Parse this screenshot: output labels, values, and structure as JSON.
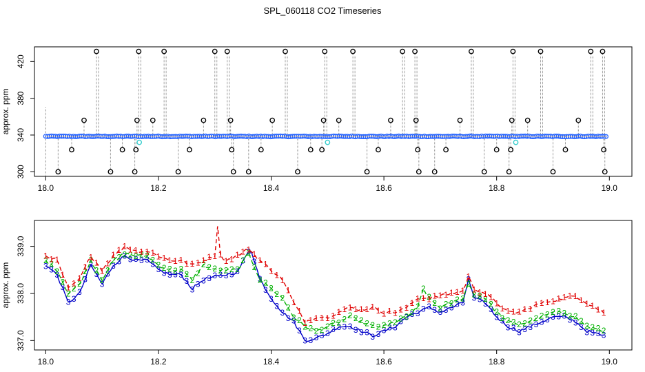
{
  "title": "SPL_060118  CO2 Timeseries",
  "colors": {
    "series1": "#e00000",
    "series2": "#00b000",
    "series3": "#0000c8",
    "raw": "#000000",
    "flagged": "#33cccc",
    "drop_line": "#888888",
    "frame": "#000000"
  },
  "chart_data": [
    {
      "type": "scatter",
      "ylabel": "approx. ppm",
      "xlabel": "",
      "xlim": [
        17.98,
        19.04
      ],
      "ylim": [
        295,
        436
      ],
      "xticks": [
        18.0,
        18.2,
        18.4,
        18.6,
        18.8,
        19.0
      ],
      "xtick_labels": [
        "18.0",
        "18.2",
        "18.4",
        "18.6",
        "18.8",
        "19.0"
      ],
      "yticks": [
        300,
        340,
        380,
        420
      ],
      "ytick_labels": [
        "300",
        "340",
        "380",
        "420"
      ],
      "baseline_ppm": 338.5,
      "baseline_x_range": [
        18.0,
        18.995
      ],
      "spikes": [
        {
          "x": 18.022,
          "y": 300
        },
        {
          "x": 18.046,
          "y": 324
        },
        {
          "x": 18.068,
          "y": 356
        },
        {
          "x": 18.09,
          "y": 431
        },
        {
          "x": 18.115,
          "y": 300
        },
        {
          "x": 18.136,
          "y": 324
        },
        {
          "x": 18.158,
          "y": 300
        },
        {
          "x": 18.16,
          "y": 324
        },
        {
          "x": 18.162,
          "y": 356
        },
        {
          "x": 18.165,
          "y": 431
        },
        {
          "x": 18.19,
          "y": 356
        },
        {
          "x": 18.21,
          "y": 431
        },
        {
          "x": 18.235,
          "y": 300
        },
        {
          "x": 18.255,
          "y": 324
        },
        {
          "x": 18.28,
          "y": 356
        },
        {
          "x": 18.3,
          "y": 431
        },
        {
          "x": 18.322,
          "y": 431
        },
        {
          "x": 18.328,
          "y": 356
        },
        {
          "x": 18.33,
          "y": 324
        },
        {
          "x": 18.333,
          "y": 300
        },
        {
          "x": 18.36,
          "y": 300
        },
        {
          "x": 18.382,
          "y": 324
        },
        {
          "x": 18.402,
          "y": 356
        },
        {
          "x": 18.425,
          "y": 431
        },
        {
          "x": 18.447,
          "y": 300
        },
        {
          "x": 18.47,
          "y": 324
        },
        {
          "x": 18.49,
          "y": 324
        },
        {
          "x": 18.493,
          "y": 356
        },
        {
          "x": 18.495,
          "y": 431
        },
        {
          "x": 18.52,
          "y": 356
        },
        {
          "x": 18.545,
          "y": 431
        },
        {
          "x": 18.57,
          "y": 300
        },
        {
          "x": 18.59,
          "y": 324
        },
        {
          "x": 18.612,
          "y": 356
        },
        {
          "x": 18.633,
          "y": 431
        },
        {
          "x": 18.655,
          "y": 431
        },
        {
          "x": 18.657,
          "y": 356
        },
        {
          "x": 18.66,
          "y": 324
        },
        {
          "x": 18.662,
          "y": 300
        },
        {
          "x": 18.69,
          "y": 300
        },
        {
          "x": 18.71,
          "y": 324
        },
        {
          "x": 18.735,
          "y": 356
        },
        {
          "x": 18.755,
          "y": 431
        },
        {
          "x": 18.778,
          "y": 300
        },
        {
          "x": 18.8,
          "y": 324
        },
        {
          "x": 18.822,
          "y": 300
        },
        {
          "x": 18.825,
          "y": 324
        },
        {
          "x": 18.827,
          "y": 356
        },
        {
          "x": 18.829,
          "y": 431
        },
        {
          "x": 18.855,
          "y": 356
        },
        {
          "x": 18.878,
          "y": 431
        },
        {
          "x": 18.9,
          "y": 300
        },
        {
          "x": 18.922,
          "y": 324
        },
        {
          "x": 18.945,
          "y": 356
        },
        {
          "x": 18.967,
          "y": 431
        },
        {
          "x": 18.988,
          "y": 431
        },
        {
          "x": 18.99,
          "y": 324
        },
        {
          "x": 18.992,
          "y": 300
        }
      ],
      "flagged_points": [
        {
          "x": 18.166,
          "y": 332
        },
        {
          "x": 18.5,
          "y": 332
        },
        {
          "x": 18.834,
          "y": 332
        }
      ]
    },
    {
      "type": "line",
      "ylabel": "approx. ppm",
      "xlabel": "",
      "xlim": [
        17.98,
        19.04
      ],
      "ylim": [
        336.8,
        339.55
      ],
      "xticks": [
        18.0,
        18.2,
        18.4,
        18.6,
        18.8,
        19.0
      ],
      "xtick_labels": [
        "18.0",
        "18.2",
        "18.4",
        "18.6",
        "18.8",
        "19.0"
      ],
      "yticks": [
        337.0,
        338.0,
        339.0
      ],
      "ytick_labels": [
        "337.0",
        "338.0",
        "339.0"
      ],
      "x_range": [
        18.0,
        18.99
      ],
      "x_step": 0.005,
      "series": [
        {
          "name": "1",
          "symbol": "1",
          "color": "#e00000",
          "style": "dashed",
          "anchor_x": [
            18.0,
            18.02,
            18.04,
            18.06,
            18.08,
            18.1,
            18.12,
            18.14,
            18.16,
            18.18,
            18.2,
            18.22,
            18.24,
            18.26,
            18.28,
            18.3,
            18.305,
            18.31,
            18.32,
            18.34,
            18.36,
            18.38,
            18.4,
            18.42,
            18.44,
            18.46,
            18.48,
            18.5,
            18.52,
            18.54,
            18.56,
            18.58,
            18.6,
            18.62,
            18.64,
            18.66,
            18.68,
            18.7,
            18.72,
            18.74,
            18.75,
            18.76,
            18.78,
            18.8,
            18.82,
            18.84,
            18.86,
            18.88,
            18.9,
            18.92,
            18.94,
            18.96,
            18.99
          ],
          "anchor_y": [
            338.8,
            338.7,
            338.1,
            338.3,
            338.8,
            338.5,
            338.8,
            339.0,
            338.9,
            338.9,
            338.8,
            338.7,
            338.7,
            338.6,
            338.7,
            338.8,
            339.45,
            338.8,
            338.7,
            338.8,
            338.95,
            338.7,
            338.5,
            338.3,
            337.8,
            337.4,
            337.5,
            337.5,
            337.6,
            337.7,
            337.65,
            337.7,
            337.6,
            337.6,
            337.7,
            337.9,
            337.9,
            337.95,
            338.0,
            338.05,
            338.35,
            338.1,
            338.0,
            337.8,
            337.6,
            337.6,
            337.7,
            337.8,
            337.85,
            337.9,
            337.95,
            337.8,
            337.6
          ]
        },
        {
          "name": "2",
          "symbol": "2",
          "color": "#00b000",
          "style": "dashed",
          "anchor_x": [
            18.0,
            18.02,
            18.04,
            18.06,
            18.08,
            18.1,
            18.12,
            18.14,
            18.16,
            18.18,
            18.2,
            18.22,
            18.24,
            18.26,
            18.28,
            18.3,
            18.32,
            18.34,
            18.36,
            18.38,
            18.4,
            18.42,
            18.44,
            18.46,
            18.48,
            18.5,
            18.52,
            18.54,
            18.56,
            18.58,
            18.6,
            18.62,
            18.64,
            18.66,
            18.67,
            18.68,
            18.7,
            18.72,
            18.74,
            18.75,
            18.76,
            18.78,
            18.8,
            18.82,
            18.84,
            18.86,
            18.88,
            18.9,
            18.92,
            18.94,
            18.96,
            18.99
          ],
          "anchor_y": [
            338.7,
            338.5,
            338.0,
            338.2,
            338.7,
            338.3,
            338.7,
            338.85,
            338.8,
            338.8,
            338.6,
            338.5,
            338.5,
            338.3,
            338.6,
            338.5,
            338.5,
            338.5,
            338.85,
            338.3,
            338.1,
            337.9,
            337.5,
            337.3,
            337.2,
            337.3,
            337.4,
            337.5,
            337.4,
            337.3,
            337.3,
            337.4,
            337.5,
            337.7,
            338.1,
            337.9,
            337.7,
            337.8,
            337.9,
            338.2,
            338.0,
            337.9,
            337.6,
            337.4,
            337.35,
            337.4,
            337.5,
            337.6,
            337.6,
            337.5,
            337.3,
            337.2
          ]
        },
        {
          "name": "3",
          "symbol": "3",
          "color": "#0000c8",
          "style": "solid",
          "anchor_x": [
            18.0,
            18.02,
            18.04,
            18.06,
            18.08,
            18.1,
            18.12,
            18.14,
            18.16,
            18.18,
            18.2,
            18.22,
            18.24,
            18.26,
            18.28,
            18.3,
            18.32,
            18.34,
            18.36,
            18.365,
            18.38,
            18.4,
            18.42,
            18.44,
            18.46,
            18.48,
            18.5,
            18.52,
            18.54,
            18.56,
            18.58,
            18.6,
            18.62,
            18.64,
            18.66,
            18.68,
            18.7,
            18.72,
            18.74,
            18.75,
            18.76,
            18.78,
            18.8,
            18.82,
            18.84,
            18.86,
            18.88,
            18.9,
            18.92,
            18.94,
            18.96,
            18.99
          ],
          "anchor_y": [
            338.6,
            338.4,
            337.8,
            338.0,
            338.6,
            338.2,
            338.6,
            338.8,
            338.7,
            338.7,
            338.5,
            338.4,
            338.4,
            338.1,
            338.3,
            338.35,
            338.4,
            338.45,
            338.9,
            338.9,
            338.3,
            337.9,
            337.6,
            337.4,
            337.0,
            337.05,
            337.15,
            337.3,
            337.3,
            337.2,
            337.1,
            337.2,
            337.3,
            337.5,
            337.6,
            337.7,
            337.6,
            337.7,
            337.8,
            338.3,
            337.9,
            337.8,
            337.5,
            337.3,
            337.2,
            337.3,
            337.4,
            337.5,
            337.5,
            337.4,
            337.2,
            337.1
          ]
        }
      ]
    }
  ]
}
